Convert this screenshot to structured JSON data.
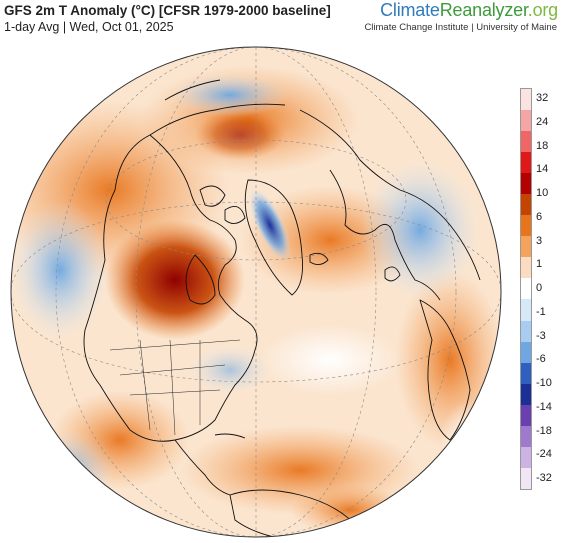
{
  "header": {
    "title": "GFS 2m T Anomaly (°C) [CFSR 1979-2000 baseline]",
    "subtitle": "1-day Avg | Wed, Oct 01, 2025"
  },
  "brand": {
    "part1": "Climate",
    "part2": "Reanalyzer",
    "part3": ".org",
    "affiliation": "Climate Change Institute | University of Maine"
  },
  "legend": {
    "labels": [
      "32",
      "24",
      "18",
      "14",
      "10",
      "6",
      "3",
      "1",
      "0",
      "-1",
      "-3",
      "-6",
      "-10",
      "-14",
      "-18",
      "-24",
      "-32"
    ],
    "colors": [
      "#fbe3e1",
      "#f4a5a5",
      "#ee6666",
      "#e01818",
      "#b30000",
      "#c54400",
      "#e8741c",
      "#f4a25c",
      "#fbdcc0",
      "#ffffff",
      "#d7e8f8",
      "#a9cdf0",
      "#6ea7e1",
      "#2f5fc1",
      "#1b2f97",
      "#6a3fb0",
      "#9e79cd",
      "#cdb3e3",
      "#f1e6f4"
    ]
  },
  "colors": {
    "ocean_base": "#fbe5cf",
    "coastline": "#111111",
    "graticule": "#8a8a8a"
  }
}
